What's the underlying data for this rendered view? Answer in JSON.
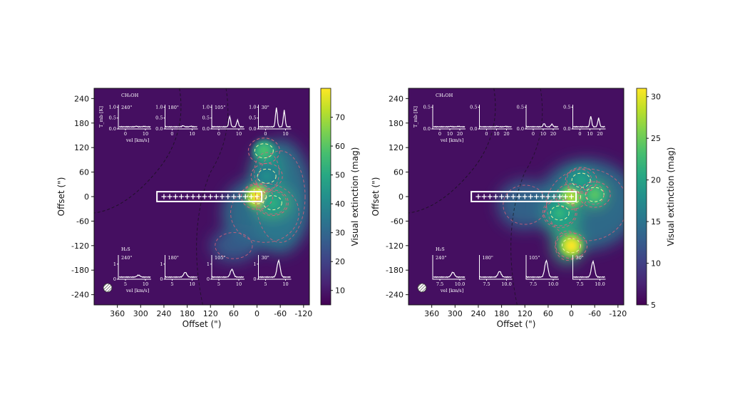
{
  "chart_data": [
    {
      "type": "heatmap",
      "xlabel": "Offset (\")",
      "ylabel": "Offset (\")",
      "xticks": [
        "360",
        "300",
        "240",
        "180",
        "120",
        "60",
        "0",
        "-60",
        "-120"
      ],
      "yticks": [
        "240",
        "180",
        "120",
        "60",
        "0",
        "-60",
        "-120",
        "-180",
        "-240"
      ],
      "xlim": [
        420,
        -135
      ],
      "ylim": [
        -265,
        265
      ],
      "colorbar": {
        "label": "Visual extinction (mag)",
        "min": 5,
        "max": 80,
        "ticks": [
          "10",
          "20",
          "30",
          "40",
          "50",
          "60",
          "70"
        ]
      },
      "peaks": [
        {
          "x": 0,
          "y": 0,
          "value": 80
        },
        {
          "x": -40,
          "y": -15,
          "value": 52
        },
        {
          "x": -18,
          "y": 112,
          "value": 58
        },
        {
          "x": -25,
          "y": 50,
          "value": 42
        }
      ],
      "cut_points": [
        "240",
        "225",
        "210",
        "195",
        "180",
        "165",
        "150",
        "135",
        "120",
        "105",
        "90",
        "75",
        "60",
        "45",
        "30",
        "15",
        "0"
      ],
      "beam_marker": "hatched-circle",
      "top_panel": {
        "molecule": "CH₃OH",
        "ylabel": "T_mb [K]",
        "xlabel": "vel [km/s]",
        "yticks": [
          "0.0",
          "0.5",
          "1.0"
        ],
        "xticks": [
          "0",
          "10"
        ],
        "offsets": [
          "240\"",
          "180\"",
          "105\"",
          "30\""
        ],
        "peak_heights": [
          [
            0.03,
            0.02
          ],
          [
            0.06,
            0.03
          ],
          [
            0.55,
            0.35
          ],
          [
            1.0,
            0.85
          ]
        ]
      },
      "bottom_panel": {
        "molecule": "H₂S",
        "xlabel": "vel [km/s]",
        "yticks": [
          "0",
          "1"
        ],
        "xticks": [
          "5",
          "10"
        ],
        "offsets": [
          "240\"",
          "180\"",
          "105\"",
          "30\""
        ],
        "peak_heights": [
          [
            0.1
          ],
          [
            0.25
          ],
          [
            0.4
          ],
          [
            0.85
          ]
        ]
      }
    },
    {
      "type": "heatmap",
      "xlabel": "Offset (\")",
      "ylabel": "Offset (\")",
      "xticks": [
        "360",
        "300",
        "240",
        "180",
        "120",
        "60",
        "0",
        "-60",
        "-120"
      ],
      "yticks": [
        "240",
        "180",
        "120",
        "60",
        "0",
        "-60",
        "-120",
        "-180",
        "-240"
      ],
      "xlim": [
        420,
        -135
      ],
      "ylim": [
        -265,
        265
      ],
      "colorbar": {
        "label": "Visual extinction (mag)",
        "min": 5,
        "max": 31,
        "ticks": [
          "5",
          "10",
          "15",
          "20",
          "25",
          "30"
        ]
      },
      "peaks": [
        {
          "x": 0,
          "y": -120,
          "value": 31
        },
        {
          "x": 0,
          "y": 0,
          "value": 28
        },
        {
          "x": -60,
          "y": 5,
          "value": 24
        },
        {
          "x": 30,
          "y": -40,
          "value": 22
        },
        {
          "x": -25,
          "y": 40,
          "value": 20
        }
      ],
      "cut_points": [
        "240",
        "225",
        "210",
        "195",
        "180",
        "165",
        "150",
        "135",
        "120",
        "105",
        "90",
        "75",
        "60",
        "45",
        "30",
        "15",
        "0"
      ],
      "beam_marker": "hatched-circle",
      "top_panel": {
        "molecule": "CH₃OH",
        "ylabel": "T_mb [K]",
        "xlabel": "vel [km/s]",
        "yticks": [
          "0.0",
          "0.5"
        ],
        "xticks": [
          "0",
          "10",
          "20"
        ],
        "offsets": [],
        "peak_heights": [
          [
            0.02,
            0.02
          ],
          [
            0.02,
            0.02
          ],
          [
            0.18,
            0.14
          ],
          [
            0.55,
            0.45
          ]
        ]
      },
      "bottom_panel": {
        "molecule": "H₂S",
        "xlabel": "vel [km/s]",
        "yticks": [],
        "xticks": [
          "7.5",
          "10.0"
        ],
        "offsets": [
          "240\"",
          "180\"",
          "105\"",
          "30\""
        ],
        "peak_heights": [
          [
            0.25
          ],
          [
            0.3
          ],
          [
            0.85
          ],
          [
            0.8
          ]
        ]
      }
    }
  ]
}
